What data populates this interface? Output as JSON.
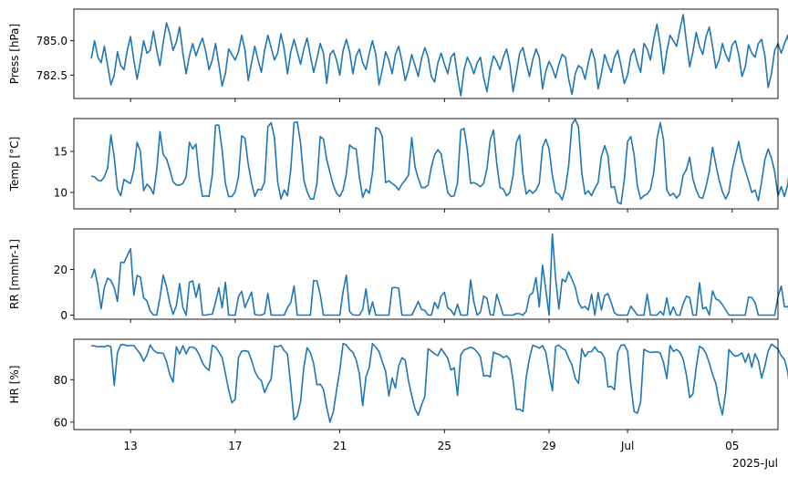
{
  "chart_data": {
    "type": "line",
    "line_color": "#1f77b4",
    "x_start": "2025-07-11T12:00",
    "x_end": "2025-07-06T02:00",
    "x_step_hours": 3,
    "x_range": [
      "2025-07-10T20:00",
      "2025-07-06T18:00"
    ],
    "x_ticks": [
      {
        "date": "2025-07-13",
        "label": "13"
      },
      {
        "date": "2025-07-17",
        "label": "17"
      },
      {
        "date": "2025-07-21",
        "label": "21"
      },
      {
        "date": "2025-07-25",
        "label": "25"
      },
      {
        "date": "2025-07-29",
        "label": "29"
      },
      {
        "date": "2025-08-01",
        "label": "Jul"
      },
      {
        "date": "2025-08-05",
        "label": "05"
      }
    ],
    "x_offset_label": "2025-Jul",
    "panels": [
      {
        "ylabel": "Press [hPa]",
        "ylim": [
          780.8,
          787.3
        ],
        "yticks": [
          782.5,
          785.0
        ],
        "ytick_labels": [
          "782.5",
          "785.0"
        ],
        "values": [
          783.7,
          785.0,
          783.8,
          783.4,
          784.6,
          783.2,
          781.8,
          782.5,
          784.2,
          783.2,
          782.9,
          784.3,
          785.3,
          783.6,
          782.2,
          783.5,
          785.0,
          784.1,
          784.3,
          785.7,
          784.3,
          783.2,
          784.9,
          786.3,
          785.5,
          784.3,
          784.9,
          786.0,
          784.1,
          782.6,
          783.9,
          784.8,
          783.9,
          784.6,
          785.2,
          784.2,
          782.9,
          783.6,
          784.8,
          783.3,
          781.7,
          782.6,
          784.4,
          784.0,
          783.6,
          784.2,
          785.4,
          784.3,
          782.1,
          783.4,
          784.6,
          783.6,
          782.7,
          784.3,
          785.4,
          784.5,
          783.6,
          784.1,
          785.5,
          784.4,
          782.6,
          784.2,
          785.1,
          784.2,
          783.3,
          784.4,
          785.2,
          783.9,
          782.7,
          783.7,
          784.8,
          784.1,
          781.9,
          784.0,
          784.3,
          783.6,
          782.5,
          784.3,
          785.1,
          784.2,
          782.6,
          783.9,
          784.4,
          783.4,
          782.9,
          784.1,
          785.0,
          784.0,
          781.8,
          782.9,
          784.2,
          783.6,
          782.6,
          784.0,
          784.6,
          783.5,
          782.1,
          782.9,
          784.0,
          783.2,
          782.4,
          783.7,
          784.5,
          783.8,
          782.4,
          782.0,
          783.4,
          784.1,
          783.3,
          782.6,
          783.8,
          784.1,
          782.4,
          781.0,
          782.9,
          783.8,
          783.3,
          782.6,
          783.4,
          783.8,
          782.3,
          781.3,
          782.9,
          783.9,
          783.5,
          782.9,
          783.8,
          784.4,
          783.3,
          781.3,
          782.6,
          784.1,
          784.5,
          783.4,
          782.4,
          783.6,
          784.4,
          783.8,
          781.5,
          782.8,
          783.5,
          783.0,
          782.3,
          783.3,
          784.0,
          783.8,
          782.2,
          781.1,
          782.6,
          783.2,
          783.0,
          782.2,
          783.4,
          784.4,
          783.6,
          781.5,
          782.6,
          784.0,
          783.3,
          782.7,
          783.8,
          784.3,
          783.2,
          781.9,
          782.5,
          783.9,
          784.4,
          783.4,
          782.7,
          784.8,
          784.4,
          783.6,
          785.1,
          786.2,
          784.7,
          782.6,
          784.2,
          785.4,
          785.0,
          784.6,
          785.8,
          786.9,
          784.9,
          783.1,
          784.2,
          785.6,
          784.6,
          784.0,
          785.3,
          786.0,
          784.6,
          783.0,
          783.6,
          784.8,
          784.0,
          783.5,
          784.7,
          785.0,
          784.0,
          782.4,
          783.1,
          784.7,
          784.1,
          783.8,
          784.8,
          785.1,
          783.9,
          781.6,
          782.6,
          784.3,
          784.8,
          784.1,
          784.8,
          785.4,
          783.6,
          782.5,
          783.2,
          784.4,
          784.2,
          783.5,
          784.5,
          785.5,
          784.5,
          783.3,
          784.6,
          785.4,
          784.0,
          783.4,
          784.9,
          785.5,
          784.5,
          782.8,
          783.9,
          784.9,
          784.0,
          783.6,
          784.6,
          785.4,
          784.1,
          782.6,
          783.5,
          785.2,
          784.4
        ]
      },
      {
        "ylabel": "Temp [°C]",
        "ylim": [
          8.0,
          19.0
        ],
        "yticks": [
          10,
          15
        ],
        "ytick_labels": [
          "10",
          "15"
        ],
        "values": [
          12.0,
          11.9,
          11.5,
          11.4,
          11.9,
          13.0,
          17.0,
          14.3,
          10.4,
          9.6,
          11.6,
          11.3,
          11.1,
          12.7,
          16.1,
          15.0,
          10.2,
          11.0,
          10.6,
          9.8,
          12.7,
          17.4,
          14.6,
          14.1,
          12.8,
          11.3,
          10.9,
          10.9,
          11.1,
          11.9,
          16.1,
          15.3,
          15.9,
          11.9,
          9.5,
          9.6,
          9.5,
          12.1,
          18.2,
          18.2,
          15.2,
          11.1,
          9.5,
          9.5,
          10.1,
          11.9,
          16.9,
          16.6,
          13.4,
          11.2,
          9.5,
          10.4,
          10.3,
          11.3,
          18.0,
          18.5,
          16.7,
          11.3,
          9.2,
          10.3,
          9.6,
          12.8,
          18.5,
          18.6,
          16.0,
          11.5,
          10.1,
          9.2,
          9.2,
          11.1,
          16.8,
          16.5,
          14.0,
          12.4,
          10.9,
          9.9,
          9.5,
          10.3,
          12.3,
          15.8,
          15.4,
          15.3,
          11.8,
          9.4,
          10.4,
          9.9,
          12.4,
          17.9,
          17.7,
          16.8,
          11.2,
          11.4,
          11.1,
          10.8,
          10.3,
          11.0,
          11.5,
          12.1,
          16.7,
          13.1,
          11.7,
          10.6,
          10.6,
          10.9,
          13.1,
          14.6,
          15.2,
          14.7,
          12.3,
          10.0,
          9.5,
          9.6,
          11.2,
          17.6,
          17.8,
          15.2,
          11.1,
          11.2,
          11.0,
          10.7,
          11.1,
          12.9,
          16.4,
          17.6,
          13.5,
          10.6,
          10.4,
          9.6,
          10.0,
          12.1,
          16.1,
          17.0,
          12.3,
          9.8,
          10.3,
          9.9,
          10.3,
          11.1,
          15.5,
          16.5,
          15.3,
          12.1,
          10.0,
          9.8,
          9.1,
          10.5,
          13.3,
          18.3,
          18.9,
          18.0,
          12.4,
          9.8,
          10.2,
          9.6,
          10.5,
          11.2,
          14.4,
          15.7,
          14.5,
          10.6,
          10.7,
          8.8,
          8.6,
          11.5,
          16.2,
          16.8,
          14.6,
          10.8,
          9.2,
          9.6,
          9.8,
          10.4,
          12.4,
          16.5,
          18.5,
          16.4,
          10.3,
          9.6,
          9.9,
          9.3,
          9.8,
          12.1,
          12.8,
          14.3,
          11.6,
          10.3,
          9.4,
          9.3,
          10.7,
          12.6,
          15.5,
          13.4,
          11.5,
          10.1,
          9.2,
          10.0,
          12.7,
          14.5,
          16.2,
          14.0,
          12.7,
          11.4,
          10.0,
          10.3,
          9.0,
          11.3,
          14.0,
          15.3,
          14.2,
          12.5,
          9.6,
          10.7,
          9.5,
          11.0,
          14.5,
          16.5,
          14.6,
          12.6,
          10.2,
          9.7,
          9.6,
          9.9,
          12.1,
          13.6,
          14.2,
          11.8,
          9.8,
          10.2,
          9.8,
          11.5,
          15.1,
          16.4,
          14.0,
          13.8,
          12.9,
          11.6,
          11.0,
          9.8,
          11.9,
          14.3,
          16.1,
          13.5,
          10.5,
          9.5,
          9.4,
          8.9,
          10.9
        ]
      },
      {
        "ylabel": "RR [mmhr-1]",
        "ylim": [
          -1.8,
          37.8
        ],
        "yticks": [
          0,
          20
        ],
        "ytick_labels": [
          "0",
          "20"
        ],
        "values": [
          16.2,
          20.1,
          12.8,
          2.8,
          12.2,
          16.2,
          15.2,
          12.1,
          6.0,
          23.2,
          23.0,
          26.1,
          29.1,
          8.7,
          17.4,
          16.7,
          7.6,
          6.3,
          1.8,
          0.1,
          0.0,
          7.7,
          17.6,
          12.4,
          5.3,
          0.4,
          4.1,
          13.8,
          3.4,
          0.0,
          14.4,
          15.0,
          7.8,
          13.7,
          0.0,
          0.0,
          0.3,
          0.4,
          5.7,
          12.0,
          3.2,
          14.4,
          0.0,
          0.0,
          0.0,
          8.1,
          10.5,
          3.3,
          6.8,
          10.1,
          0.3,
          0.0,
          0.0,
          0.7,
          9.6,
          0.0,
          0.0,
          0.0,
          0.0,
          0.0,
          3.3,
          5.5,
          12.8,
          0.0,
          0.0,
          0.0,
          0.0,
          0.0,
          15.2,
          15.0,
          9.1,
          0.0,
          0.0,
          0.0,
          0.0,
          0.0,
          0.0,
          10.3,
          17.5,
          1.6,
          0.1,
          0.0,
          0.0,
          2.5,
          11.5,
          0.3,
          5.8,
          0.0,
          0.0,
          0.0,
          0.0,
          0.0,
          12.0,
          12.1,
          11.8,
          0.0,
          0.0,
          0.0,
          0.0,
          2.9,
          6.0,
          2.4,
          2.1,
          0.0,
          0.0,
          5.6,
          2.9,
          8.5,
          10.0,
          3.2,
          2.1,
          0.0,
          4.8,
          0.0,
          0.0,
          0.0,
          15.4,
          5.8,
          0.0,
          1.3,
          8.3,
          7.4,
          0.2,
          0.0,
          9.2,
          4.6,
          0.0,
          0.0,
          0.0,
          0.0,
          0.7,
          0.6,
          0.0,
          1.7,
          8.6,
          9.8,
          16.5,
          3.6,
          21.9,
          11.1,
          0.0,
          35.6,
          16.1,
          2.7,
          15.8,
          14.6,
          18.9,
          15.7,
          12.2,
          5.6,
          3.1,
          3.8,
          2.2,
          9.2,
          0.0,
          9.9,
          2.2,
          8.6,
          9.4,
          5.5,
          1.0,
          0.0,
          0.0,
          0.0,
          0.0,
          3.9,
          2.0,
          0.0,
          0.0,
          0.0,
          9.2,
          0.0,
          0.0,
          0.0,
          1.6,
          0.0,
          7.6,
          0.0,
          3.6,
          0.0,
          0.0,
          4.9,
          8.3,
          7.7,
          0.0,
          0.0,
          14.2,
          2.7,
          3.5,
          0.0,
          10.6,
          7.1,
          6.4,
          4.6,
          2.3,
          0.0,
          0.0,
          0.0,
          0.0,
          0.0,
          0.0,
          7.9,
          7.7,
          5.5,
          0.0,
          0.0,
          0.0,
          0.0,
          0.0,
          0.0,
          8.1,
          12.7,
          3.6,
          3.8,
          0.0,
          0.0,
          0.0,
          0.0,
          0.0,
          11.6,
          16.4,
          20.7,
          11.4,
          10.5,
          4.9,
          0.0,
          0.5,
          2.0,
          1.9,
          1.8,
          0.0,
          2.9,
          20.3,
          0.0,
          0.0,
          0.0,
          0.0
        ]
      },
      {
        "ylabel": "HR [%]",
        "ylim": [
          56.5,
          99.0
        ],
        "yticks": [
          60,
          80
        ],
        "ytick_labels": [
          "60",
          "80"
        ],
        "values": [
          95.9,
          95.9,
          95.5,
          95.6,
          95.4,
          96.1,
          95.4,
          77.3,
          92.8,
          96.4,
          96.5,
          95.9,
          96.1,
          96.1,
          94.0,
          92.1,
          88.7,
          91.5,
          96.3,
          93.9,
          92.7,
          92.5,
          92.4,
          88.5,
          82.4,
          78.8,
          95.5,
          92.1,
          96.0,
          92.2,
          95.3,
          95.3,
          94.5,
          91.7,
          87.9,
          85.6,
          84.4,
          96.2,
          95.3,
          93.1,
          90.5,
          83.0,
          75.1,
          69.1,
          70.8,
          90.4,
          93.4,
          93.6,
          93.2,
          89.2,
          84.0,
          81.0,
          79.5,
          73.9,
          77.5,
          80.3,
          95.8,
          95.5,
          96.1,
          93.7,
          92.0,
          77.1,
          61.1,
          62.9,
          69.7,
          86.0,
          95.0,
          92.7,
          87.5,
          77.6,
          77.9,
          75.4,
          67.0,
          60.0,
          64.8,
          75.0,
          84.4,
          97.0,
          96.3,
          94.2,
          92.9,
          89.3,
          82.6,
          67.8,
          81.4,
          85.7,
          97.0,
          95.3,
          93.2,
          88.3,
          84.0,
          72.3,
          80.8,
          76.1,
          86.5,
          90.3,
          89.2,
          79.5,
          72.4,
          66.2,
          63.3,
          68.1,
          72.1,
          94.6,
          93.4,
          92.1,
          91.3,
          94.6,
          92.4,
          90.1,
          84.5,
          85.6,
          72.6,
          91.7,
          94.0,
          94.6,
          95.3,
          94.6,
          93.0,
          90.7,
          81.7,
          82.0,
          81.3,
          92.9,
          92.2,
          91.7,
          90.4,
          91.2,
          89.4,
          79.6,
          65.9,
          66.1,
          65.0,
          81.1,
          90.0,
          96.2,
          95.6,
          94.8,
          96.0,
          92.9,
          83.4,
          74.7,
          95.6,
          96.3,
          94.8,
          93.9,
          90.1,
          86.9,
          80.7,
          78.3,
          94.6,
          90.8,
          93.1,
          93.2,
          95.4,
          93.2,
          92.8,
          90.1,
          76.6,
          76.8,
          75.3,
          93.0,
          96.2,
          96.4,
          93.5,
          77.6,
          65.0,
          64.2,
          69.6,
          94.3,
          93.4,
          92.8,
          92.9,
          93.1,
          92.5,
          88.1,
          80.5,
          96.1,
          93.3,
          94.2,
          92.9,
          89.6,
          82.2,
          71.5,
          73.3,
          85.9,
          95.7,
          94.8,
          92.3,
          87.8,
          82.4,
          78.2,
          69.5,
          63.5,
          73.9,
          94.2,
          92.3,
          91.0,
          91.5,
          92.6,
          88.1,
          92.3,
          85.9,
          92.2,
          88.9,
          80.7,
          86.4,
          93.4,
          96.7,
          95.6,
          94.4,
          91.3,
          89.5,
          83.5,
          71.1,
          86.0,
          89.9,
          96.9,
          96.3,
          94.6,
          95.3,
          94.8,
          93.0,
          85.3,
          84.2,
          77.7,
          93.6,
          92.7,
          92.5,
          90.8,
          80.7,
          79.3,
          81.9,
          94.6,
          93.7,
          95.2,
          94.8
        ]
      }
    ]
  }
}
